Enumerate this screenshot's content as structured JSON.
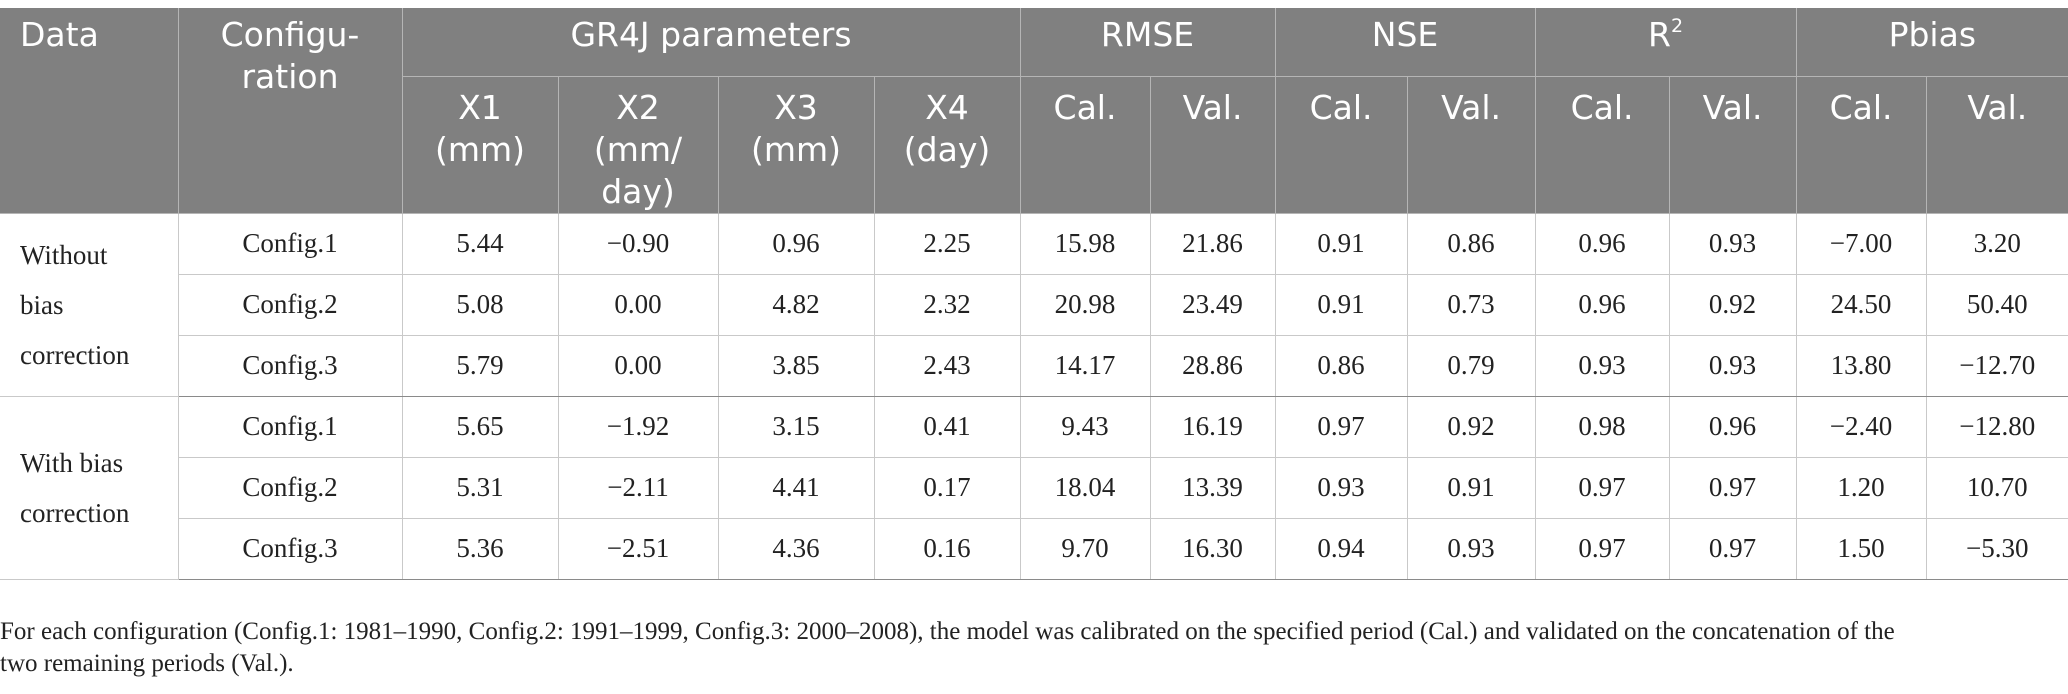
{
  "header": {
    "data": "Data",
    "configuration_line1": "Configu-",
    "configuration_line2": "ration",
    "gr4j": "GR4J parameters",
    "rmse": "RMSE",
    "nse": "NSE",
    "r2_base": "R",
    "r2_sup": "2",
    "pbias": "Pbias",
    "x1_line1": "X1",
    "x1_line2": "(mm)",
    "x2_line1": "X2",
    "x2_line2": "(mm/",
    "x2_line3": "day)",
    "x3_line1": "X3",
    "x3_line2": "(mm)",
    "x4_line1": "X4",
    "x4_line2": "(day)",
    "cal": "Cal.",
    "val": "Val."
  },
  "groups": [
    {
      "label_lines": [
        "Without",
        "bias",
        "correction"
      ],
      "rows": [
        {
          "config": "Config.1",
          "x1": "5.44",
          "x2": "−0.90",
          "x3": "0.96",
          "x4": "2.25",
          "rmse_cal": "15.98",
          "rmse_val": "21.86",
          "nse_cal": "0.91",
          "nse_val": "0.86",
          "r2_cal": "0.96",
          "r2_val": "0.93",
          "pbias_cal": "−7.00",
          "pbias_val": "3.20"
        },
        {
          "config": "Config.2",
          "x1": "5.08",
          "x2": "0.00",
          "x3": "4.82",
          "x4": "2.32",
          "rmse_cal": "20.98",
          "rmse_val": "23.49",
          "nse_cal": "0.91",
          "nse_val": "0.73",
          "r2_cal": "0.96",
          "r2_val": "0.92",
          "pbias_cal": "24.50",
          "pbias_val": "50.40"
        },
        {
          "config": "Config.3",
          "x1": "5.79",
          "x2": "0.00",
          "x3": "3.85",
          "x4": "2.43",
          "rmse_cal": "14.17",
          "rmse_val": "28.86",
          "nse_cal": "0.86",
          "nse_val": "0.79",
          "r2_cal": "0.93",
          "r2_val": "0.93",
          "pbias_cal": "13.80",
          "pbias_val": "−12.70"
        }
      ]
    },
    {
      "label_lines": [
        "With bias",
        "correction"
      ],
      "rows": [
        {
          "config": "Config.1",
          "x1": "5.65",
          "x2": "−1.92",
          "x3": "3.15",
          "x4": "0.41",
          "rmse_cal": "9.43",
          "rmse_val": "16.19",
          "nse_cal": "0.97",
          "nse_val": "0.92",
          "r2_cal": "0.98",
          "r2_val": "0.96",
          "pbias_cal": "−2.40",
          "pbias_val": "−12.80"
        },
        {
          "config": "Config.2",
          "x1": "5.31",
          "x2": "−2.11",
          "x3": "4.41",
          "x4": "0.17",
          "rmse_cal": "18.04",
          "rmse_val": "13.39",
          "nse_cal": "0.93",
          "nse_val": "0.91",
          "r2_cal": "0.97",
          "r2_val": "0.97",
          "pbias_cal": "1.20",
          "pbias_val": "10.70"
        },
        {
          "config": "Config.3",
          "x1": "5.36",
          "x2": "−2.51",
          "x3": "4.36",
          "x4": "0.16",
          "rmse_cal": "9.70",
          "rmse_val": "16.30",
          "nse_cal": "0.94",
          "nse_val": "0.93",
          "r2_cal": "0.97",
          "r2_val": "0.97",
          "pbias_cal": "1.50",
          "pbias_val": "−5.30"
        }
      ]
    }
  ],
  "footnote_line1": "For each configuration (Config.1: 1981–1990, Config.2: 1991–1999, Config.3: 2000–2008), the model was calibrated on the specified period (Cal.) and validated on the concatenation of the",
  "footnote_line2": "two remaining periods (Val.)."
}
